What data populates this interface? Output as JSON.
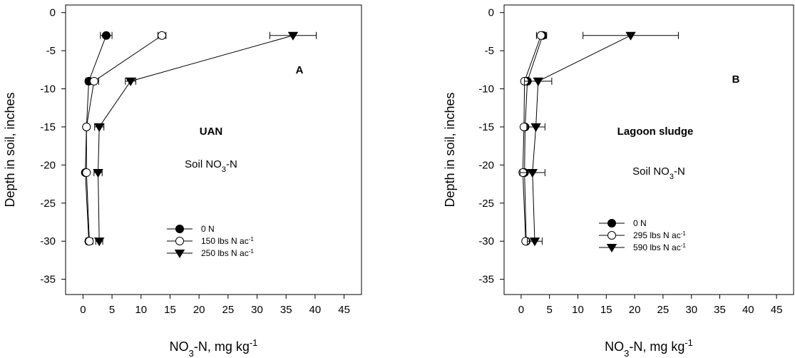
{
  "chart_data": [
    {
      "type": "line",
      "panel_label": "A",
      "annotation_title": "UAN",
      "annotation_text": {
        "pre": "Soil NO",
        "sub": "3",
        "post": "-N"
      },
      "xlabel": {
        "pre": "NO",
        "sub": "3",
        "mid": "-N, mg kg",
        "sup": "-1"
      },
      "ylabel": "Depth in soil, inches",
      "xlim": [
        -3,
        48
      ],
      "ylim": [
        -37,
        1
      ],
      "xticks": [
        0,
        5,
        10,
        15,
        20,
        25,
        30,
        35,
        40,
        45
      ],
      "yticks": [
        0,
        -5,
        -10,
        -15,
        -20,
        -25,
        -30,
        -35
      ],
      "legend_position": "lower-center",
      "series": [
        {
          "name": "0 N",
          "marker": "filled-circle",
          "x": [
            4.0,
            1.0,
            0.6,
            0.4,
            1.0
          ],
          "y": [
            -3,
            -9,
            -15,
            -21,
            -30
          ],
          "xerr": [
            1.0,
            0.5,
            0.3,
            0.3,
            0.4
          ]
        },
        {
          "name": {
            "pre": "150 lbs N ac",
            "sup": "-1"
          },
          "marker": "open-circle",
          "x": [
            13.6,
            1.9,
            0.6,
            0.6,
            1.1
          ],
          "y": [
            -3,
            -9,
            -15,
            -21,
            -30
          ],
          "xerr": [
            0.7,
            0.8,
            0.4,
            0.4,
            0.6
          ]
        },
        {
          "name": {
            "pre": "250 lbs N ac",
            "sup": "-1"
          },
          "marker": "filled-triangle-down",
          "x": [
            36.2,
            8.2,
            2.8,
            2.6,
            2.8
          ],
          "y": [
            -3,
            -9,
            -15,
            -21,
            -30
          ],
          "xerr": [
            4.0,
            0.9,
            0.8,
            0.7,
            0.6
          ]
        }
      ]
    },
    {
      "type": "line",
      "panel_label": "B",
      "annotation_title": "Lagoon sludge",
      "annotation_text": {
        "pre": "Soil NO",
        "sub": "3",
        "post": "-N"
      },
      "xlabel": {
        "pre": "NO",
        "sub": "3",
        "mid": "-N, mg kg",
        "sup": "-1"
      },
      "ylabel": "Depth in soil, inches",
      "xlim": [
        -3,
        48
      ],
      "ylim": [
        -37,
        1
      ],
      "xticks": [
        0,
        5,
        10,
        15,
        20,
        25,
        30,
        35,
        40,
        45
      ],
      "yticks": [
        0,
        -5,
        -10,
        -15,
        -20,
        -25,
        -30,
        -35
      ],
      "legend_position": "lower-left",
      "series": [
        {
          "name": "0 N",
          "marker": "filled-circle",
          "x": [
            3.8,
            1.1,
            0.7,
            0.6,
            0.9
          ],
          "y": [
            -3,
            -9,
            -15,
            -21,
            -30
          ],
          "xerr": [
            0.7,
            0.4,
            0.3,
            0.3,
            0.4
          ]
        },
        {
          "name": {
            "pre": "295 lbs N ac",
            "sup": "-1"
          },
          "marker": "open-circle",
          "x": [
            3.5,
            0.6,
            0.5,
            0.3,
            0.8
          ],
          "y": [
            -3,
            -9,
            -15,
            -21,
            -30
          ],
          "xerr": [
            0.8,
            0.4,
            0.3,
            0.3,
            0.4
          ]
        },
        {
          "name": {
            "pre": "590 lbs N ac",
            "sup": "-1"
          },
          "marker": "filled-triangle-down",
          "x": [
            19.3,
            3.0,
            2.6,
            2.0,
            2.4
          ],
          "y": [
            -3,
            -9,
            -15,
            -21,
            -30
          ],
          "xerr": [
            8.4,
            2.4,
            1.6,
            2.2,
            1.3
          ]
        }
      ]
    }
  ]
}
